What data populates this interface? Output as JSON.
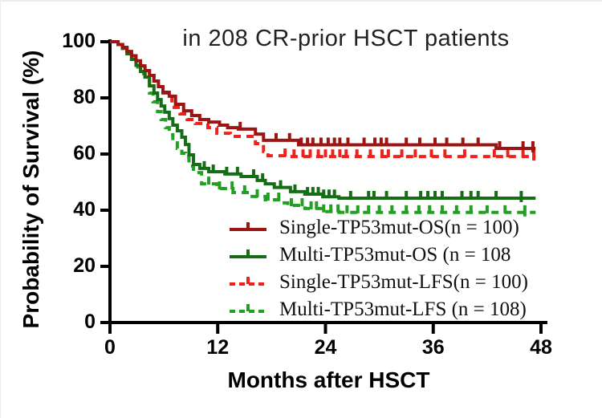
{
  "chart_data": {
    "type": "line",
    "variant": "kaplan-meier-step",
    "title": "in 208 CR-prior HSCT patients",
    "xlabel": "Months after HSCT",
    "ylabel": "Probability of Survival (%)",
    "xlim": [
      0,
      48
    ],
    "ylim": [
      0,
      100
    ],
    "x_ticks": [
      0,
      12,
      24,
      36,
      48
    ],
    "y_ticks": [
      100,
      80,
      60,
      40,
      20,
      0
    ],
    "grid": false,
    "legend_position": "inside-below-center-right",
    "axis_color": "#000000",
    "series": [
      {
        "name": "Single-TP53mut-OS(n = 100)",
        "color": "#9b1512",
        "dash": "solid",
        "points": [
          [
            0,
            100
          ],
          [
            0.9,
            99
          ],
          [
            1.4,
            98
          ],
          [
            1.9,
            96.5
          ],
          [
            2.4,
            95
          ],
          [
            2.9,
            93.2
          ],
          [
            3.4,
            91.4
          ],
          [
            3.9,
            89.7
          ],
          [
            4.4,
            88
          ],
          [
            4.9,
            86
          ],
          [
            5.4,
            84
          ],
          [
            5.9,
            82
          ],
          [
            6.6,
            80.6
          ],
          [
            7.3,
            77.7
          ],
          [
            8.2,
            75.4
          ],
          [
            9.1,
            73.7
          ],
          [
            10,
            72.3
          ],
          [
            11,
            71.4
          ],
          [
            12.2,
            70.3
          ],
          [
            13.1,
            69.4
          ],
          [
            14.3,
            68.9
          ],
          [
            16.2,
            67.1
          ],
          [
            17.1,
            64.9
          ],
          [
            21,
            63.3
          ],
          [
            43,
            62
          ],
          [
            47.4,
            62
          ]
        ],
        "censor_ticks": [
          14.5,
          18.5,
          20,
          21.3,
          22,
          22.6,
          23.5,
          24.3,
          25,
          25.6,
          26.5,
          28.3,
          29.5,
          30.2,
          30.8,
          33,
          34.5,
          36.2,
          37.5,
          39.3,
          41,
          43.4,
          46,
          47.1
        ]
      },
      {
        "name": "Multi-TP53mut-OS (n = 108",
        "color": "#156e15",
        "dash": "solid",
        "points": [
          [
            0,
            100
          ],
          [
            0.9,
            99
          ],
          [
            1.4,
            97.6
          ],
          [
            1.9,
            95.7
          ],
          [
            2.4,
            93.7
          ],
          [
            2.9,
            91.6
          ],
          [
            3.4,
            89.4
          ],
          [
            3.9,
            87.4
          ],
          [
            4.4,
            84.3
          ],
          [
            4.9,
            81.7
          ],
          [
            5.3,
            79.4
          ],
          [
            5.7,
            77.1
          ],
          [
            6.1,
            74.9
          ],
          [
            6.6,
            72.6
          ],
          [
            7,
            70.3
          ],
          [
            7.5,
            68.3
          ],
          [
            8,
            66
          ],
          [
            8.4,
            63.4
          ],
          [
            8.8,
            59.7
          ],
          [
            9.3,
            56.3
          ],
          [
            10,
            54.9
          ],
          [
            11,
            53.7
          ],
          [
            12.8,
            52.9
          ],
          [
            14.6,
            52
          ],
          [
            16.4,
            50.6
          ],
          [
            17.3,
            49.4
          ],
          [
            18.3,
            48.1
          ],
          [
            20.1,
            46.6
          ],
          [
            21.7,
            45.7
          ],
          [
            23.7,
            44.8
          ],
          [
            25.5,
            44.3
          ],
          [
            47.4,
            44.3
          ]
        ],
        "censor_ticks": [
          10.5,
          11.5,
          13,
          14.2,
          16,
          17,
          19,
          20.6,
          22,
          22.6,
          23.2,
          23.8,
          24.4,
          25,
          26.8,
          28.8,
          29.4,
          30.8,
          33,
          34.6,
          35.4,
          36.2,
          37,
          39.2,
          40.2,
          41,
          43,
          45.8
        ]
      },
      {
        "name": "Single-TP53mut-LFS(n = 100)",
        "color": "#ee221c",
        "dash": "dashed",
        "points": [
          [
            0,
            100
          ],
          [
            0.9,
            99
          ],
          [
            1.4,
            98
          ],
          [
            1.9,
            96.5
          ],
          [
            2.4,
            95
          ],
          [
            2.9,
            93.2
          ],
          [
            3.4,
            91.4
          ],
          [
            3.9,
            89.7
          ],
          [
            4.4,
            88
          ],
          [
            4.9,
            86
          ],
          [
            5.4,
            84
          ],
          [
            5.9,
            81.7
          ],
          [
            6.9,
            76.6
          ],
          [
            7.8,
            74.3
          ],
          [
            8.6,
            72.3
          ],
          [
            9.5,
            70.9
          ],
          [
            10.9,
            69.4
          ],
          [
            11.9,
            67.4
          ],
          [
            13.4,
            66.3
          ],
          [
            14.9,
            66.3
          ],
          [
            16.2,
            63.7
          ],
          [
            17.1,
            60.9
          ],
          [
            17.6,
            59.4
          ],
          [
            20,
            59.1
          ],
          [
            47.4,
            59.1
          ]
        ],
        "censor_ticks": [
          19.5,
          20.5,
          21.5,
          22.3,
          23.2,
          24,
          24.8,
          25.6,
          26.3,
          27.5,
          29,
          30.3,
          31,
          32.5,
          34,
          35.8,
          37.3,
          39.5,
          42.8,
          44.3,
          46,
          47.2
        ]
      },
      {
        "name": "Multi-TP53mut-LFS (n = 108)",
        "color": "#23a023",
        "dash": "dashed",
        "points": [
          [
            0,
            100
          ],
          [
            0.9,
            99
          ],
          [
            1.4,
            97.6
          ],
          [
            1.9,
            95.7
          ],
          [
            2.4,
            93.7
          ],
          [
            2.9,
            91
          ],
          [
            3.4,
            88.6
          ],
          [
            3.9,
            86
          ],
          [
            4.4,
            81.7
          ],
          [
            4.8,
            78.6
          ],
          [
            5.3,
            75.1
          ],
          [
            5.7,
            72.3
          ],
          [
            6.2,
            69.4
          ],
          [
            6.6,
            66.9
          ],
          [
            7,
            64.6
          ],
          [
            7.5,
            62
          ],
          [
            8,
            60.3
          ],
          [
            8.4,
            58.9
          ],
          [
            8.8,
            55.7
          ],
          [
            9.3,
            53.4
          ],
          [
            10.2,
            49.4
          ],
          [
            11.9,
            47.7
          ],
          [
            13.7,
            46.3
          ],
          [
            15.5,
            44.9
          ],
          [
            17.3,
            43.7
          ],
          [
            19.1,
            42.6
          ],
          [
            19.8,
            41.7
          ],
          [
            21.7,
            40.6
          ],
          [
            23.7,
            39.5
          ],
          [
            25.5,
            39.2
          ],
          [
            47.4,
            39.2
          ]
        ],
        "censor_ticks": [
          11,
          12.2,
          13.6,
          15,
          16.4,
          17.6,
          18.8,
          20.2,
          21.4,
          22.4,
          23,
          23.8,
          24.6,
          25.4,
          26.4,
          27.6,
          28.8,
          30,
          31.4,
          33,
          34.4,
          35.6,
          37,
          38.6,
          40.2,
          42,
          44,
          46.2
        ]
      }
    ]
  }
}
